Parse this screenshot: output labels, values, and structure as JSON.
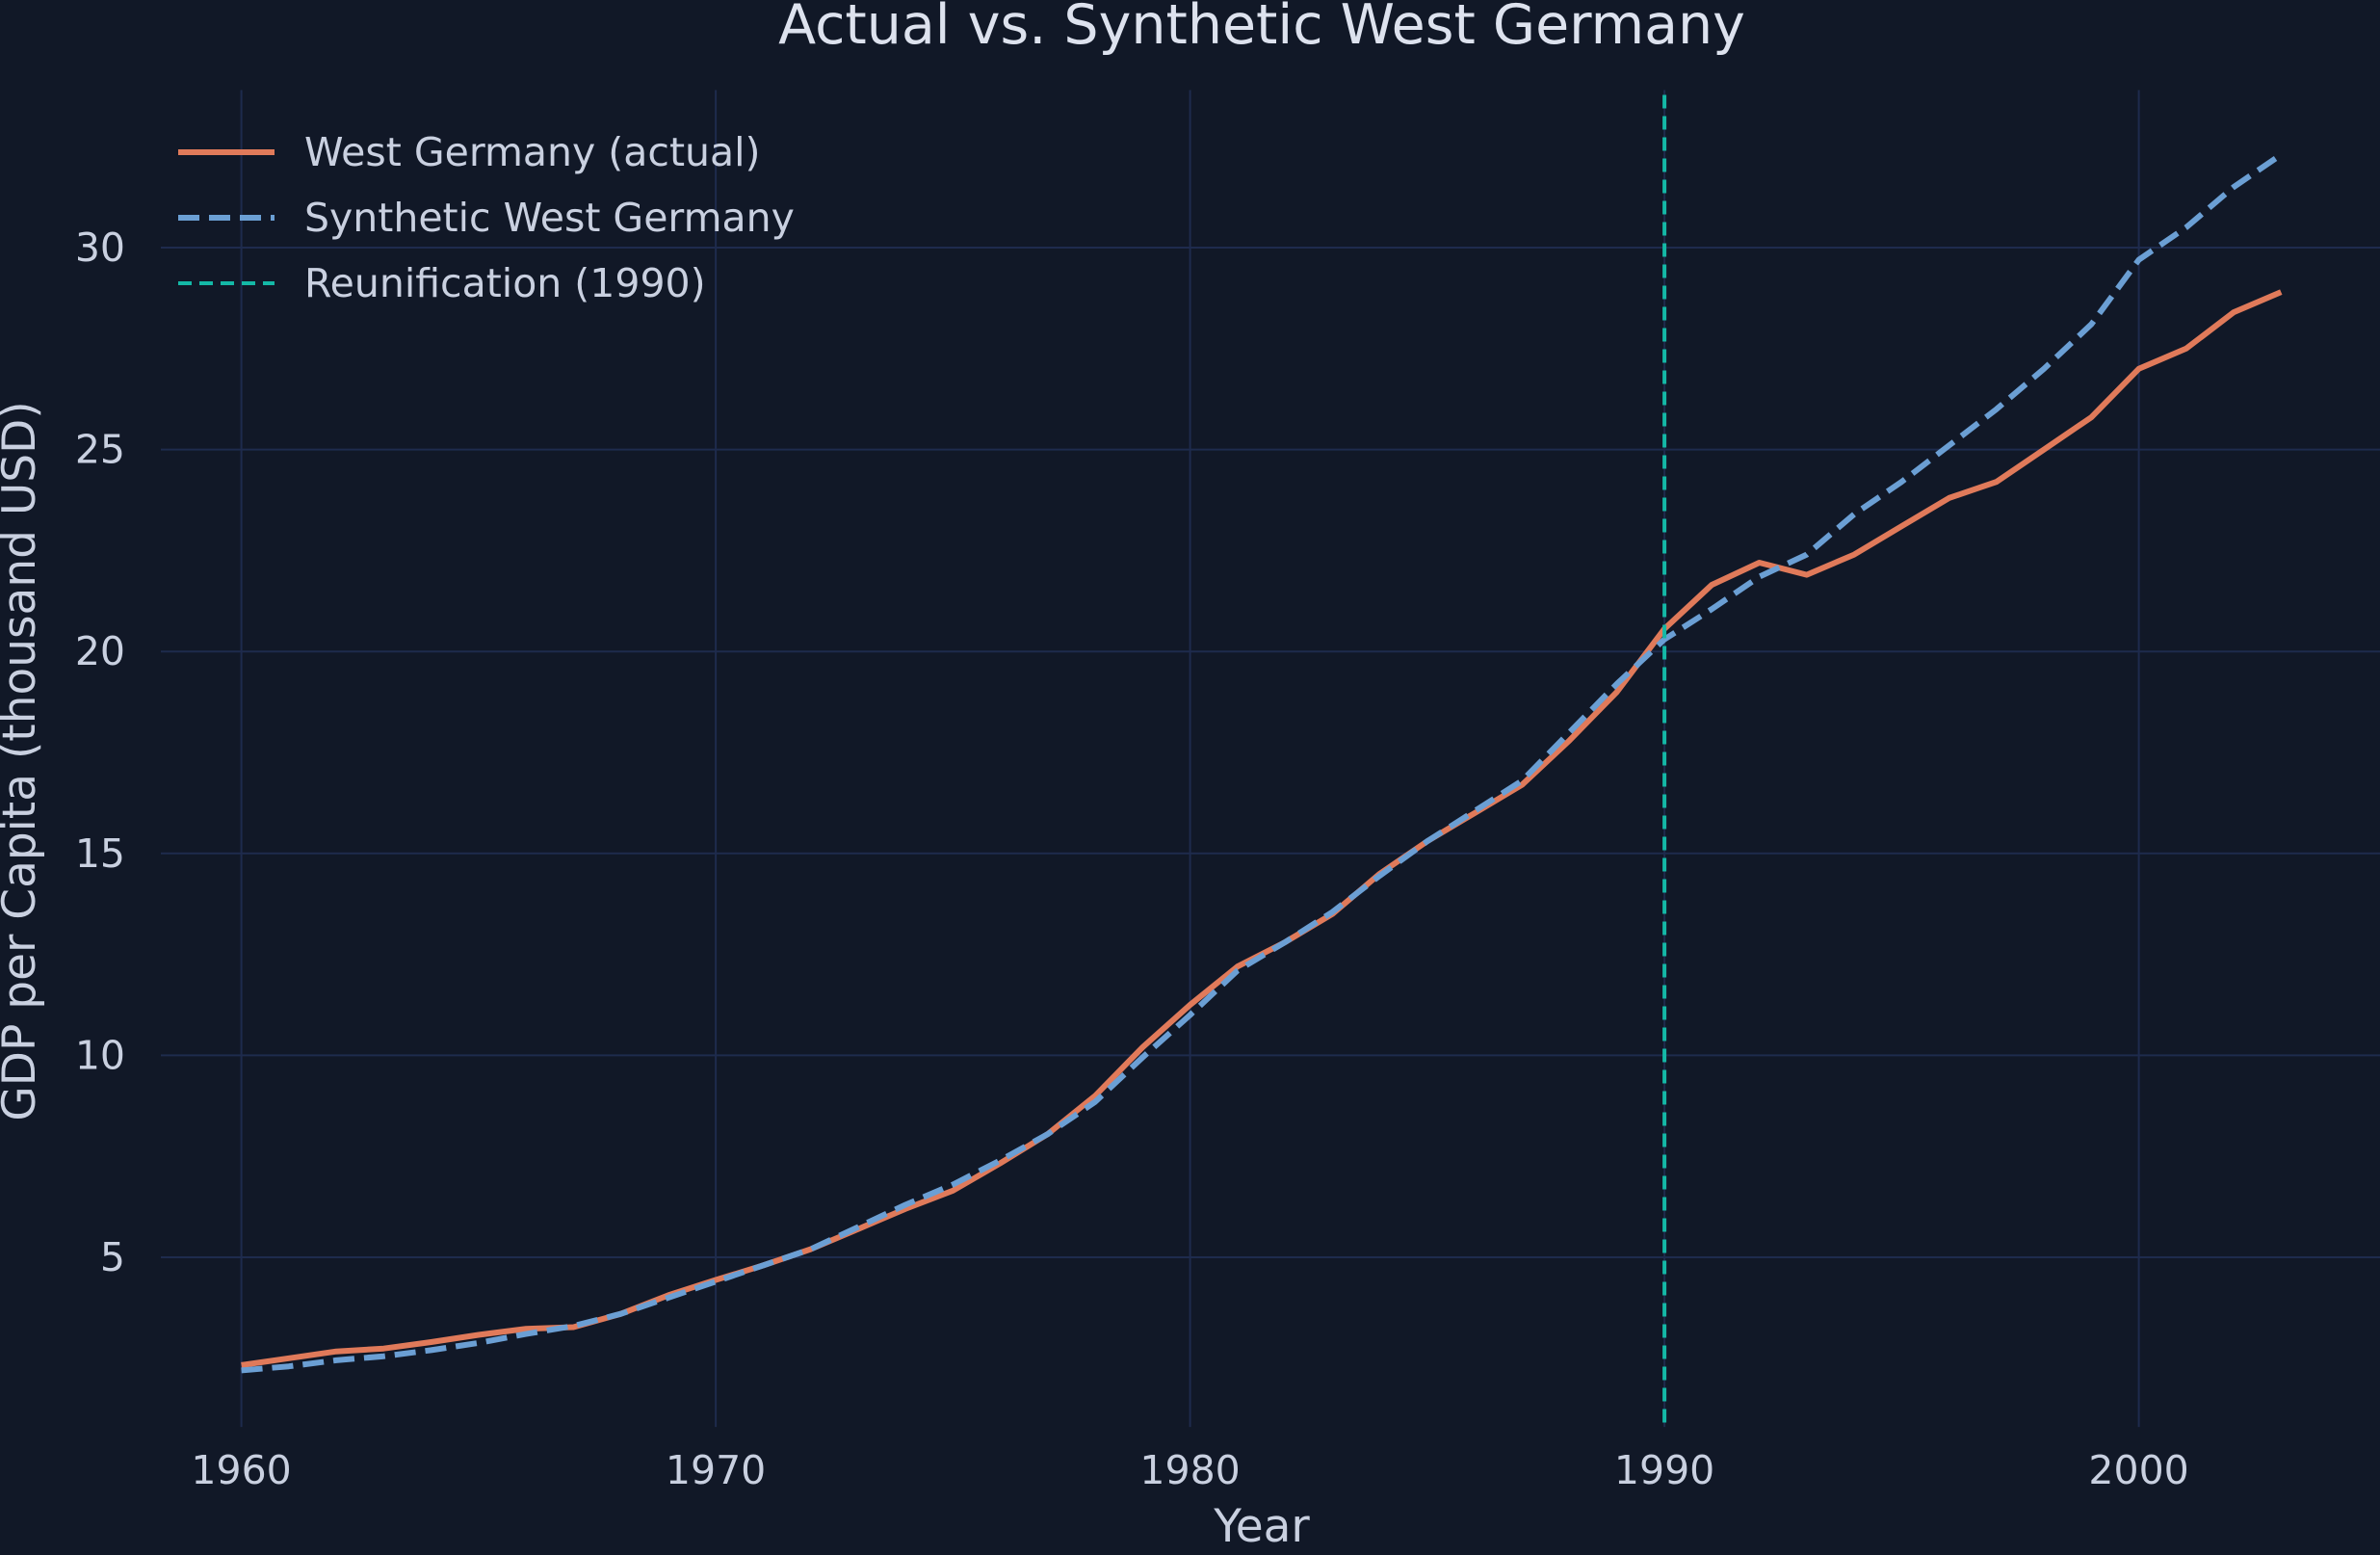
{
  "chart_data": {
    "type": "line",
    "title": "Actual vs. Synthetic West Germany",
    "xlabel": "Year",
    "ylabel": "GDP per Capita (thousand USD)",
    "xlim": [
      1958.3,
      2005
    ],
    "ylim": [
      0.8,
      33.9
    ],
    "xticks": [
      1960,
      1970,
      1980,
      1990,
      2000
    ],
    "yticks": [
      5,
      10,
      15,
      20,
      25,
      30
    ],
    "grid": true,
    "legend_position": "top-left",
    "x": [
      1960,
      1961,
      1962,
      1963,
      1964,
      1965,
      1966,
      1967,
      1968,
      1969,
      1970,
      1971,
      1972,
      1973,
      1974,
      1975,
      1976,
      1977,
      1978,
      1979,
      1980,
      1981,
      1982,
      1983,
      1984,
      1985,
      1986,
      1987,
      1988,
      1989,
      1990,
      1991,
      1992,
      1993,
      1994,
      1995,
      1996,
      1997,
      1998,
      1999,
      2000,
      2001,
      2002,
      2003
    ],
    "series": [
      {
        "name": "West Germany (actual)",
        "color": "#e07a5a",
        "style": "solid",
        "values": [
          2.33,
          2.5,
          2.67,
          2.74,
          2.9,
          3.08,
          3.23,
          3.27,
          3.6,
          4.06,
          4.44,
          4.8,
          5.2,
          5.7,
          6.2,
          6.65,
          7.33,
          8.05,
          9.0,
          10.2,
          11.25,
          12.2,
          12.8,
          13.5,
          14.5,
          15.3,
          16.0,
          16.7,
          17.8,
          19.0,
          20.56,
          21.65,
          22.2,
          21.9,
          22.4,
          23.1,
          23.8,
          24.2,
          25.0,
          25.8,
          27.0,
          27.5,
          28.4,
          28.9
        ]
      },
      {
        "name": "Synthetic West Germany",
        "color": "#6b9fd4",
        "style": "dashed",
        "values": [
          2.2,
          2.3,
          2.45,
          2.55,
          2.7,
          2.88,
          3.1,
          3.3,
          3.6,
          4.0,
          4.4,
          4.8,
          5.2,
          5.75,
          6.3,
          6.8,
          7.4,
          8.05,
          8.85,
          9.95,
          11.0,
          12.1,
          12.8,
          13.55,
          14.45,
          15.3,
          16.05,
          16.8,
          18.0,
          19.2,
          20.3,
          21.05,
          21.85,
          22.4,
          23.4,
          24.2,
          25.1,
          26.0,
          27.0,
          28.1,
          29.7,
          30.5,
          31.5,
          32.3
        ]
      }
    ],
    "vline": {
      "name": "Reunification (1990)",
      "x": 1990,
      "color": "#14b8a6",
      "style": "dashed"
    }
  },
  "colors": {
    "background": "#111827",
    "grid": "#1e2b4d",
    "text": "#c9d0e0"
  }
}
